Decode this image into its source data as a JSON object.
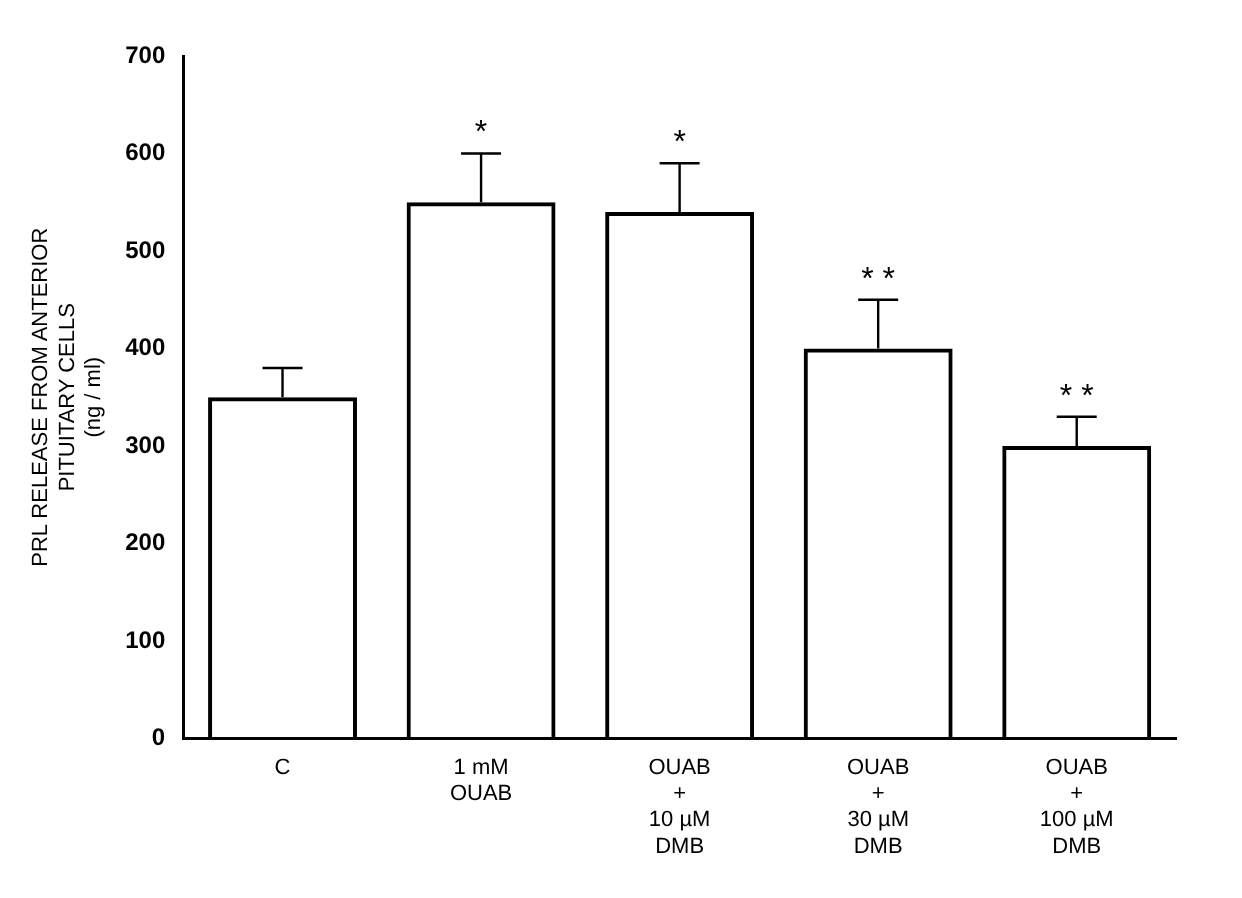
{
  "chart_data": {
    "type": "bar",
    "ylabel": "PRL RELEASE FROM ANTERIOR\nPITUITARY CELLS\n(ng / ml)",
    "categories": [
      "C",
      "1 mM\nOUAB",
      "OUAB\n+\n10 µM\nDMB",
      "OUAB\n+\n30 µM\nDMB",
      "OUAB\n+\n100 µM\nDMB"
    ],
    "values": [
      350,
      550,
      540,
      400,
      300
    ],
    "errors": [
      [
        350,
        380
      ],
      [
        550,
        600
      ],
      [
        540,
        590
      ],
      [
        400,
        450
      ],
      [
        300,
        330
      ]
    ],
    "color": "#000000",
    "ylim": [
      0,
      700
    ],
    "yticks": [
      0,
      100,
      200,
      300,
      400,
      500,
      600,
      700
    ],
    "grid": false,
    "legend": false,
    "annotations": [
      {
        "text": "*",
        "x": "1 mM\nOUAB",
        "y": 600
      },
      {
        "text": "*",
        "x": "OUAB\n+\n10 µM\nDMB",
        "y": 590
      },
      {
        "text": "* *",
        "x": "OUAB\n+\n30 µM\nDMB",
        "y": 450
      },
      {
        "text": "* *",
        "x": "OUAB\n+\n100 µM\nDMB",
        "y": 330
      }
    ]
  }
}
